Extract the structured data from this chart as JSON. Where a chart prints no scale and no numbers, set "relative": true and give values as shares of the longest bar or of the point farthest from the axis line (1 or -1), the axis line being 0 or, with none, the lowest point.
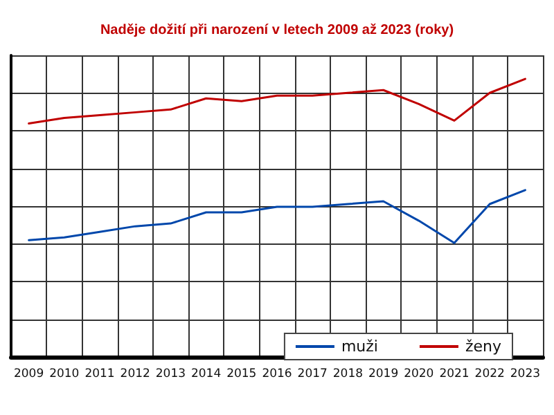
{
  "chart_data": {
    "type": "line",
    "title": "Naděje dožití při narození v letech 2009 až 2023 (roky)",
    "relative": true,
    "grid": true,
    "legend": "bottom right",
    "marker": "none",
    "line_style": "solid",
    "categories": [
      "2009",
      "2010",
      "2011",
      "2012",
      "2013",
      "2014",
      "2015",
      "2016",
      "2017",
      "2018",
      "2019",
      "2020",
      "2021",
      "2022",
      "2023"
    ],
    "series": [
      {
        "name": "muži",
        "color": "#0047ab",
        "values": [
          0.42,
          0.43,
          0.45,
          0.47,
          0.48,
          0.52,
          0.52,
          0.54,
          0.54,
          0.55,
          0.56,
          0.49,
          0.41,
          0.55,
          0.6
        ]
      },
      {
        "name": "ženy",
        "color": "#c00000",
        "values": [
          0.84,
          0.86,
          0.87,
          0.88,
          0.89,
          0.93,
          0.92,
          0.94,
          0.94,
          0.95,
          0.96,
          0.91,
          0.85,
          0.95,
          1
        ]
      }
    ]
  }
}
